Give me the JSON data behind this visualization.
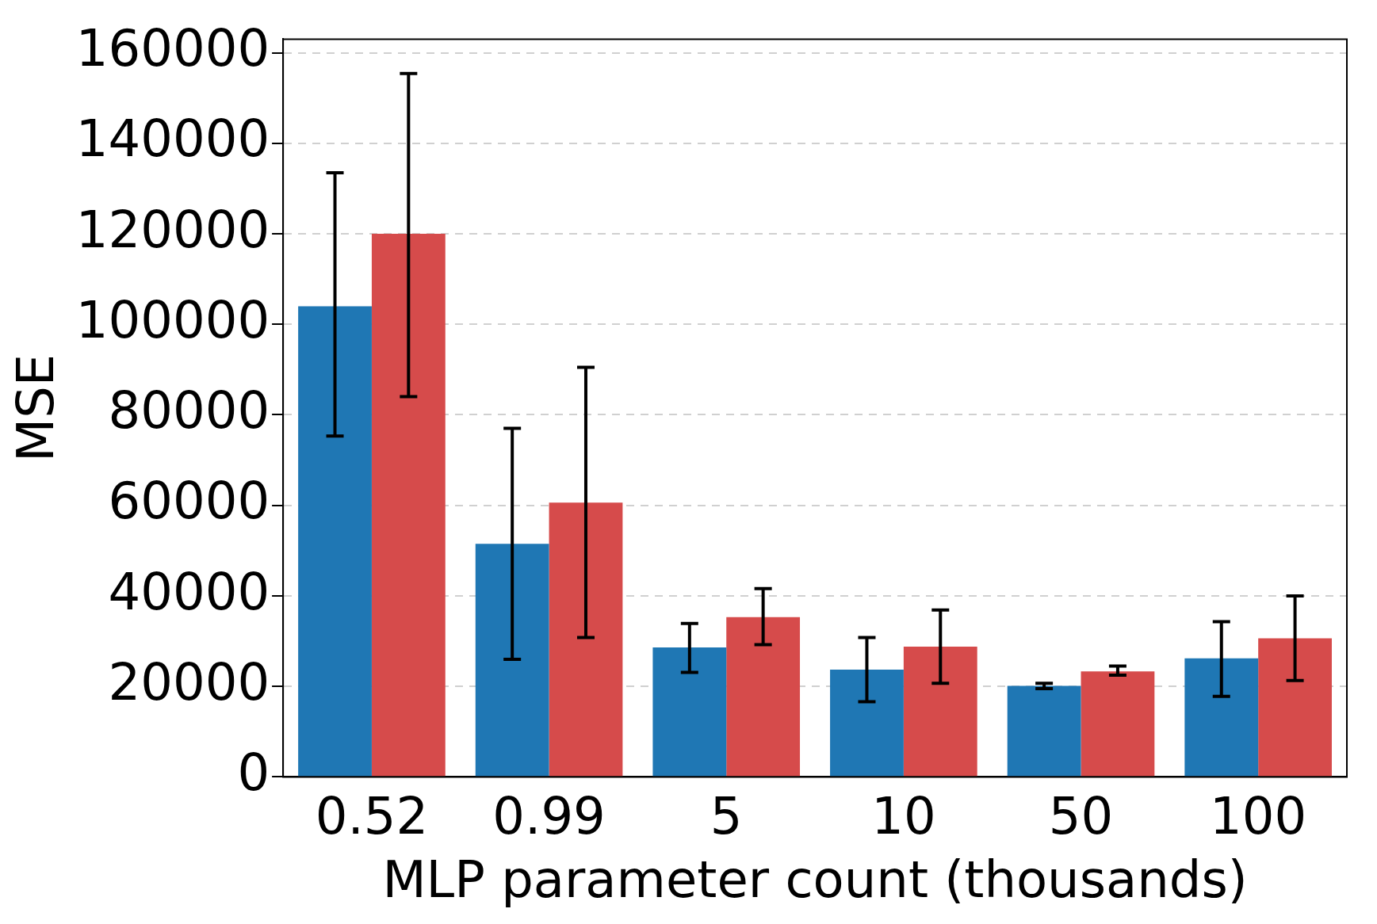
{
  "chart_data": {
    "type": "bar",
    "xlabel": "MLP parameter count (thousands)",
    "ylabel": "MSE",
    "categories": [
      "0.52",
      "0.99",
      "5",
      "10",
      "50",
      "100"
    ],
    "series": [
      {
        "color": "#1f77b4",
        "values": [
          104000,
          51500,
          28600,
          23700,
          20100,
          26200
        ],
        "errors": [
          [
            75300,
            133500
          ],
          [
            26000,
            77000
          ],
          [
            23100,
            33900
          ],
          [
            16600,
            30800
          ],
          [
            19500,
            20700
          ],
          [
            17800,
            34300
          ]
        ]
      },
      {
        "color": "#d64b4b",
        "values": [
          120000,
          60600,
          35300,
          28800,
          23300,
          30600
        ],
        "errors": [
          [
            84000,
            155400
          ],
          [
            30800,
            90500
          ],
          [
            29200,
            41600
          ],
          [
            20700,
            36900
          ],
          [
            22500,
            24500
          ],
          [
            21300,
            40000
          ]
        ]
      }
    ],
    "ylim": [
      0,
      163000
    ],
    "yticks": [
      0,
      20000,
      40000,
      60000,
      80000,
      100000,
      120000,
      140000,
      160000
    ],
    "grid": "y"
  }
}
